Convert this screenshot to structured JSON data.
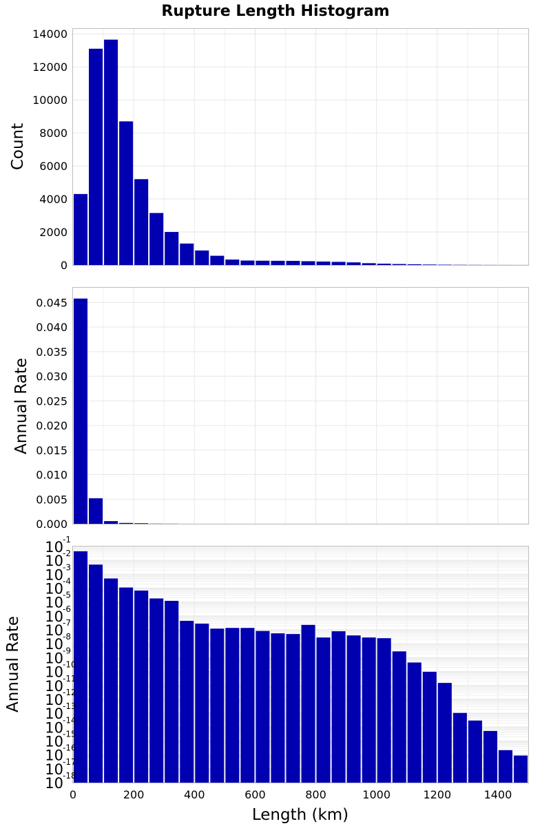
{
  "chart_data": [
    {
      "type": "bar",
      "title": "Rupture Length Histogram",
      "ylabel": "Count",
      "xlim": [
        0,
        1500
      ],
      "ylim": [
        0,
        14300
      ],
      "yticks": [
        "0",
        "2000",
        "4000",
        "6000",
        "8000",
        "10000",
        "12000",
        "14000"
      ],
      "bar_color": "#0000B0",
      "bin_width": 50,
      "x": [
        0,
        50,
        100,
        150,
        200,
        250,
        300,
        350,
        400,
        450,
        500,
        550,
        600,
        650,
        700,
        750,
        800,
        850,
        900,
        950,
        1000,
        1050,
        1100,
        1150,
        1200,
        1250,
        1300,
        1350,
        1400,
        1450
      ],
      "values": [
        4300,
        13100,
        13650,
        8700,
        5200,
        3150,
        2000,
        1300,
        880,
        560,
        330,
        270,
        260,
        255,
        250,
        230,
        210,
        190,
        160,
        110,
        80,
        60,
        45,
        30,
        20,
        12,
        8,
        5,
        3,
        2
      ]
    },
    {
      "type": "bar",
      "ylabel": "Annual Rate",
      "xlim": [
        0,
        1500
      ],
      "ylim": [
        0,
        0.048
      ],
      "yticks": [
        "0.000",
        "0.005",
        "0.010",
        "0.015",
        "0.020",
        "0.025",
        "0.030",
        "0.035",
        "0.040",
        "0.045"
      ],
      "bar_color": "#0000B0",
      "bin_width": 50,
      "x": [
        0,
        50,
        100,
        150,
        200,
        250,
        300,
        350,
        400,
        450,
        500,
        550,
        600,
        650,
        700,
        750,
        800,
        850,
        900,
        950,
        1000,
        1050,
        1100,
        1150,
        1200,
        1250,
        1300,
        1350,
        1400,
        1450
      ],
      "values": [
        0.0458,
        0.0052,
        0.00055,
        0.00018,
        0.00012,
        3e-05,
        2e-05,
        1.2e-06,
        8e-07,
        4e-07,
        4e-07,
        4e-07,
        3e-07,
        2e-07,
        2e-07,
        4e-07,
        1e-07,
        2e-07,
        1e-07,
        1e-07,
        1e-07,
        1e-08,
        1e-09,
        3e-10,
        5e-11,
        3e-13,
        1e-13,
        3e-14,
        2e-15,
        6e-16
      ]
    },
    {
      "type": "bar",
      "ylabel": "Annual Rate",
      "xlabel": "Length (km)",
      "yscale": "log",
      "ylim": [
        1e-18,
        0.1
      ],
      "xlim": [
        0,
        1500
      ],
      "xticks": [
        "0",
        "200",
        "400",
        "600",
        "800",
        "1000",
        "1200",
        "1400"
      ],
      "ytick_base": "10",
      "ytick_exponents": [
        "-1",
        "-2",
        "-3",
        "-4",
        "-5",
        "-6",
        "-7",
        "-8",
        "-9",
        "-10",
        "-11",
        "-12",
        "-13",
        "-14",
        "-15",
        "-16",
        "-17",
        "-18"
      ],
      "bar_color": "#0000B0",
      "bin_width": 50,
      "x": [
        0,
        50,
        100,
        150,
        200,
        250,
        300,
        350,
        400,
        450,
        500,
        550,
        600,
        650,
        700,
        750,
        800,
        850,
        900,
        950,
        1000,
        1050,
        1100,
        1150,
        1200,
        1250,
        1300,
        1350,
        1400,
        1450
      ],
      "log10_values": [
        -1.34,
        -2.3,
        -3.3,
        -3.95,
        -4.17,
        -4.74,
        -4.91,
        -6.35,
        -6.55,
        -6.91,
        -6.86,
        -6.86,
        -7.08,
        -7.25,
        -7.3,
        -6.64,
        -7.55,
        -7.1,
        -7.4,
        -7.55,
        -7.6,
        -8.55,
        -9.35,
        -10.02,
        -10.82,
        -12.98,
        -13.53,
        -14.28,
        -15.66,
        -16.05
      ]
    }
  ]
}
